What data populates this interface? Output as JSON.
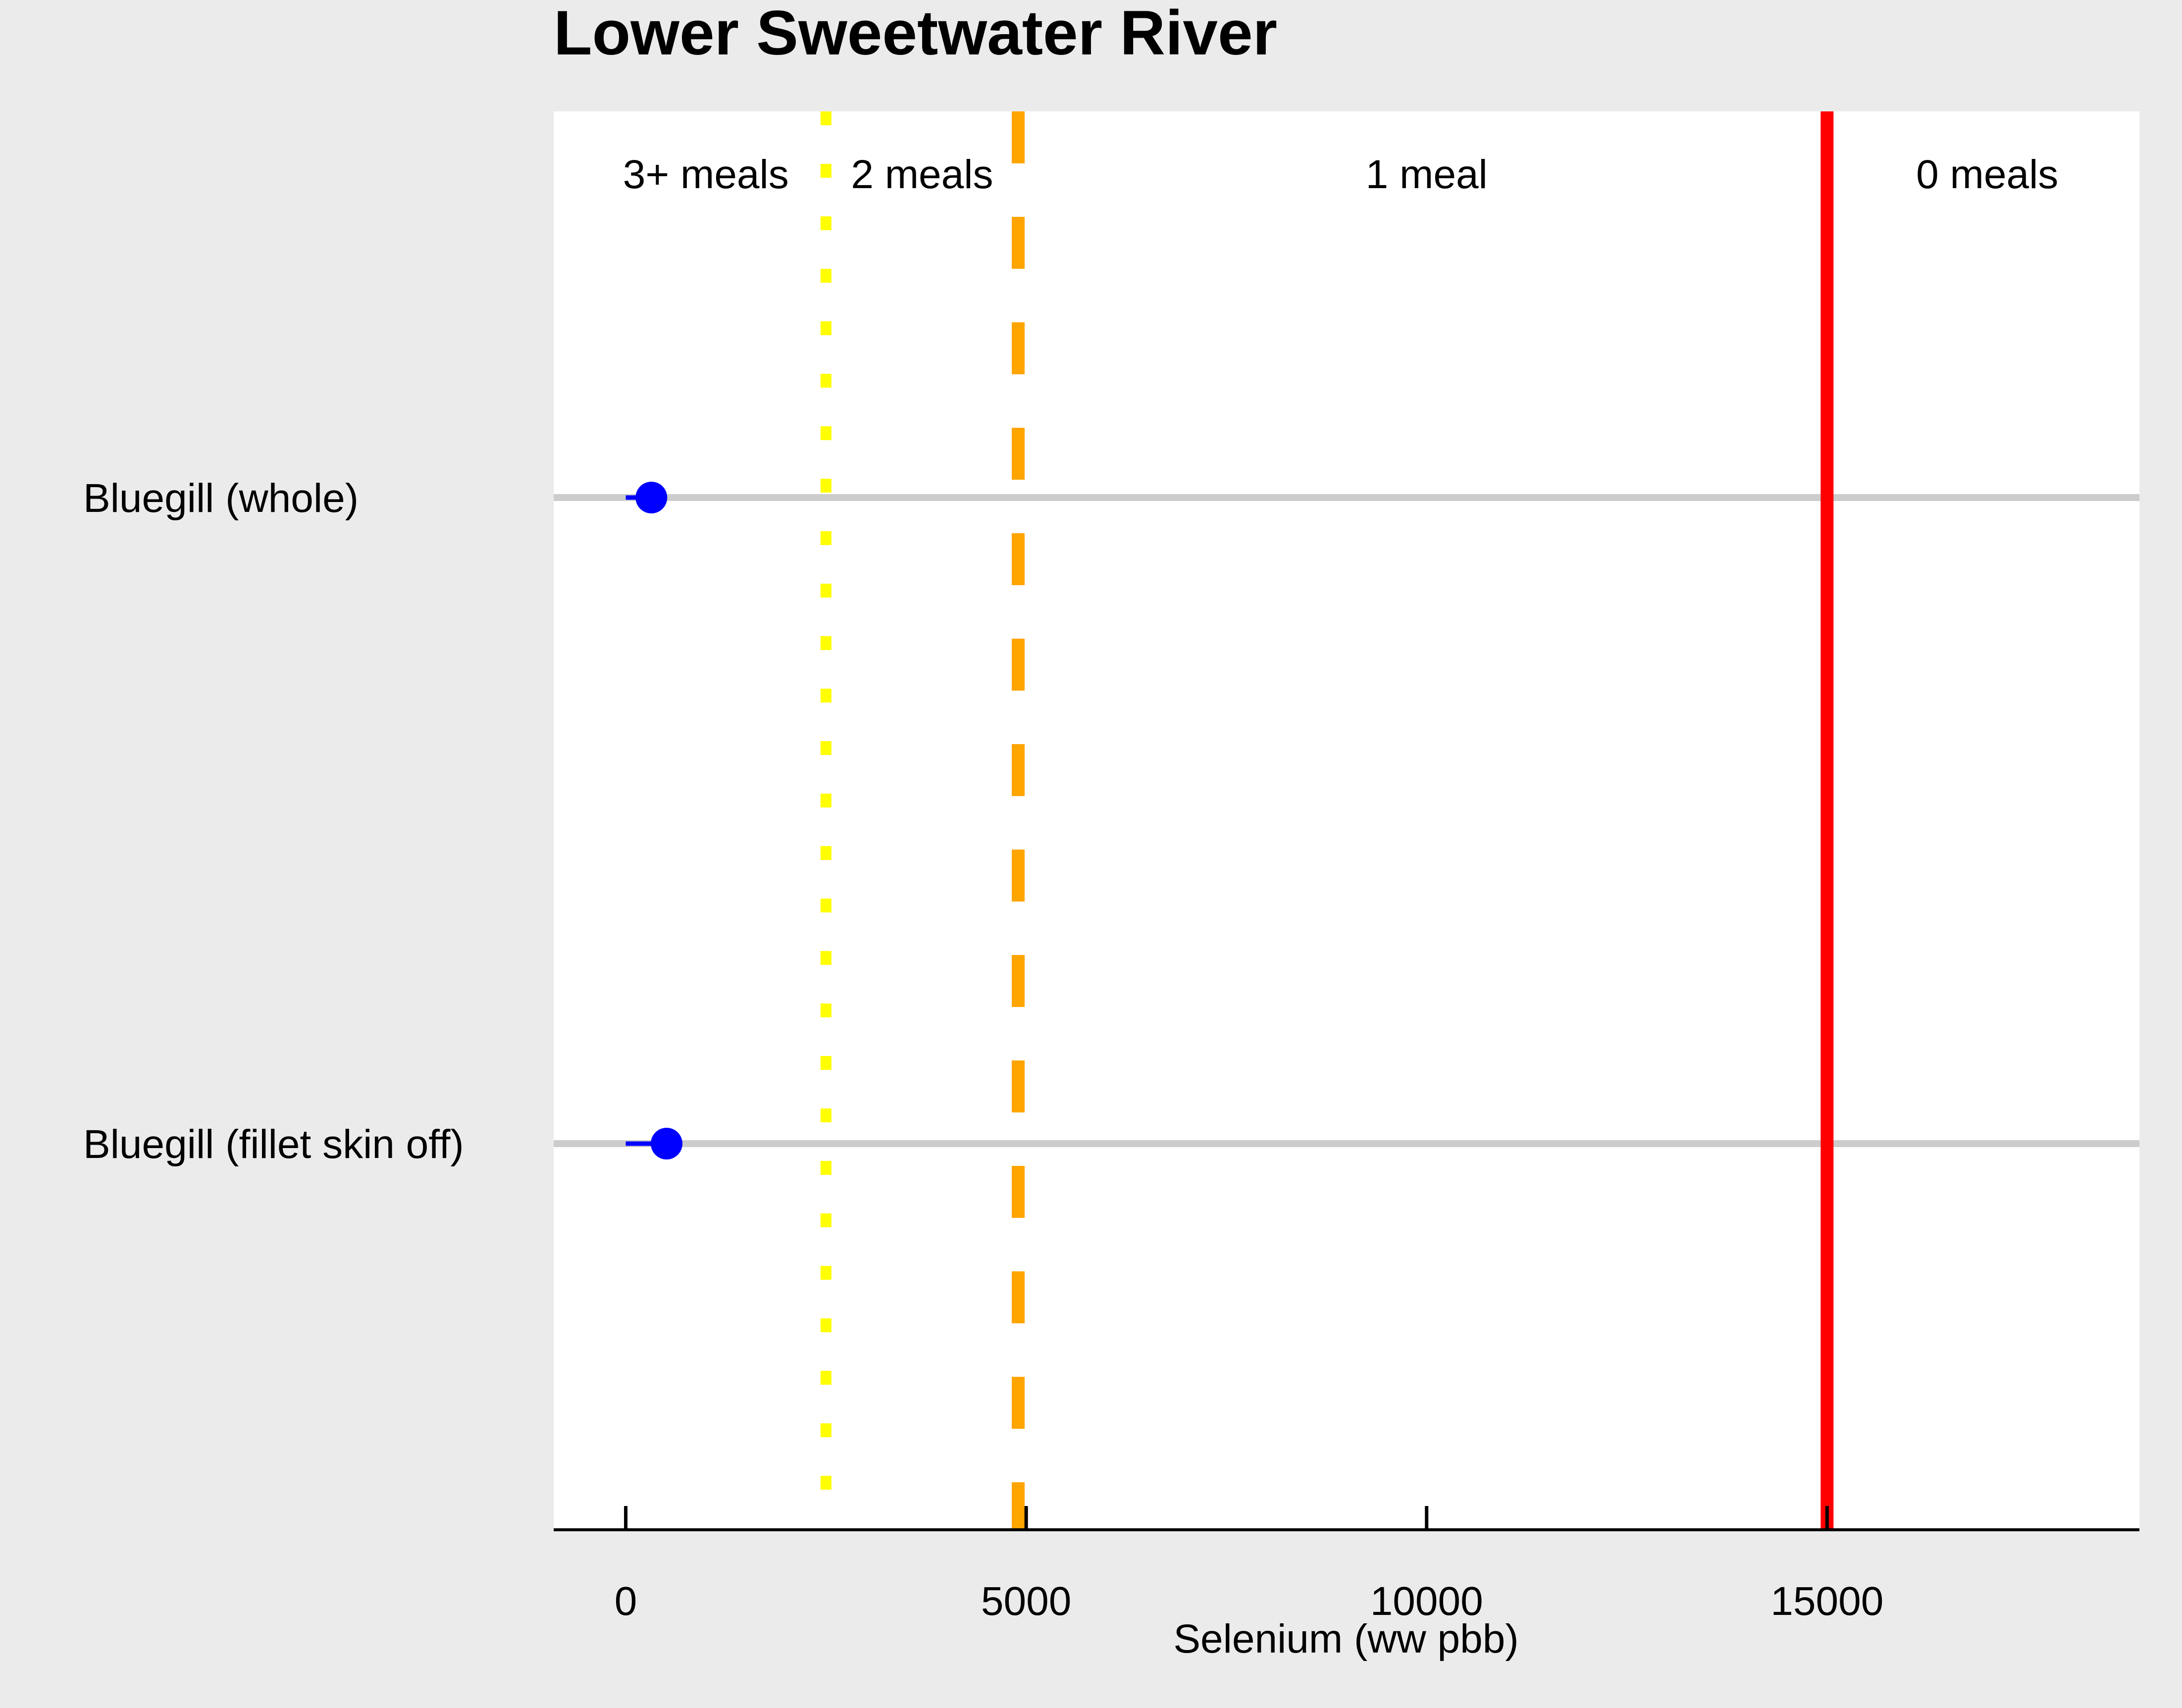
{
  "chart_data": {
    "type": "scatter",
    "title": "Lower Sweetwater River",
    "xlabel": "Selenium (ww pbb)",
    "ylabel": "",
    "xlim": [
      -900,
      18900
    ],
    "x_ticks": [
      0,
      5000,
      10000,
      15000
    ],
    "x_tick_labels": [
      "0",
      "5000",
      "10000",
      "15000"
    ],
    "categories": [
      "Bluegill (whole)",
      "Bluegill (fillet skin off)"
    ],
    "series": [
      {
        "color": "#0000ff",
        "points": [
          {
            "category": "Bluegill (whole)",
            "x": 320,
            "x_low": 0,
            "x_high": 320
          },
          {
            "category": "Bluegill (fillet skin off)",
            "x": 510,
            "x_low": 0,
            "x_high": 510
          }
        ]
      }
    ],
    "thresholds": [
      {
        "x": 2500,
        "style": "dotted",
        "color": "#ffff00"
      },
      {
        "x": 4900,
        "style": "dashed",
        "color": "#ffa500"
      },
      {
        "x": 15000,
        "style": "solid",
        "color": "#ff0000"
      }
    ],
    "region_labels": [
      {
        "text": "3+ meals",
        "x": 1000
      },
      {
        "text": "2 meals",
        "x": 3700
      },
      {
        "text": "1 meal",
        "x": 10000
      },
      {
        "text": "0 meals",
        "x": 17000
      }
    ],
    "background": "#ebebeb",
    "panel_background": "#ffffff",
    "gridline_color": "#cccccc",
    "grid": "horizontal lines at each category",
    "legend": "none"
  }
}
